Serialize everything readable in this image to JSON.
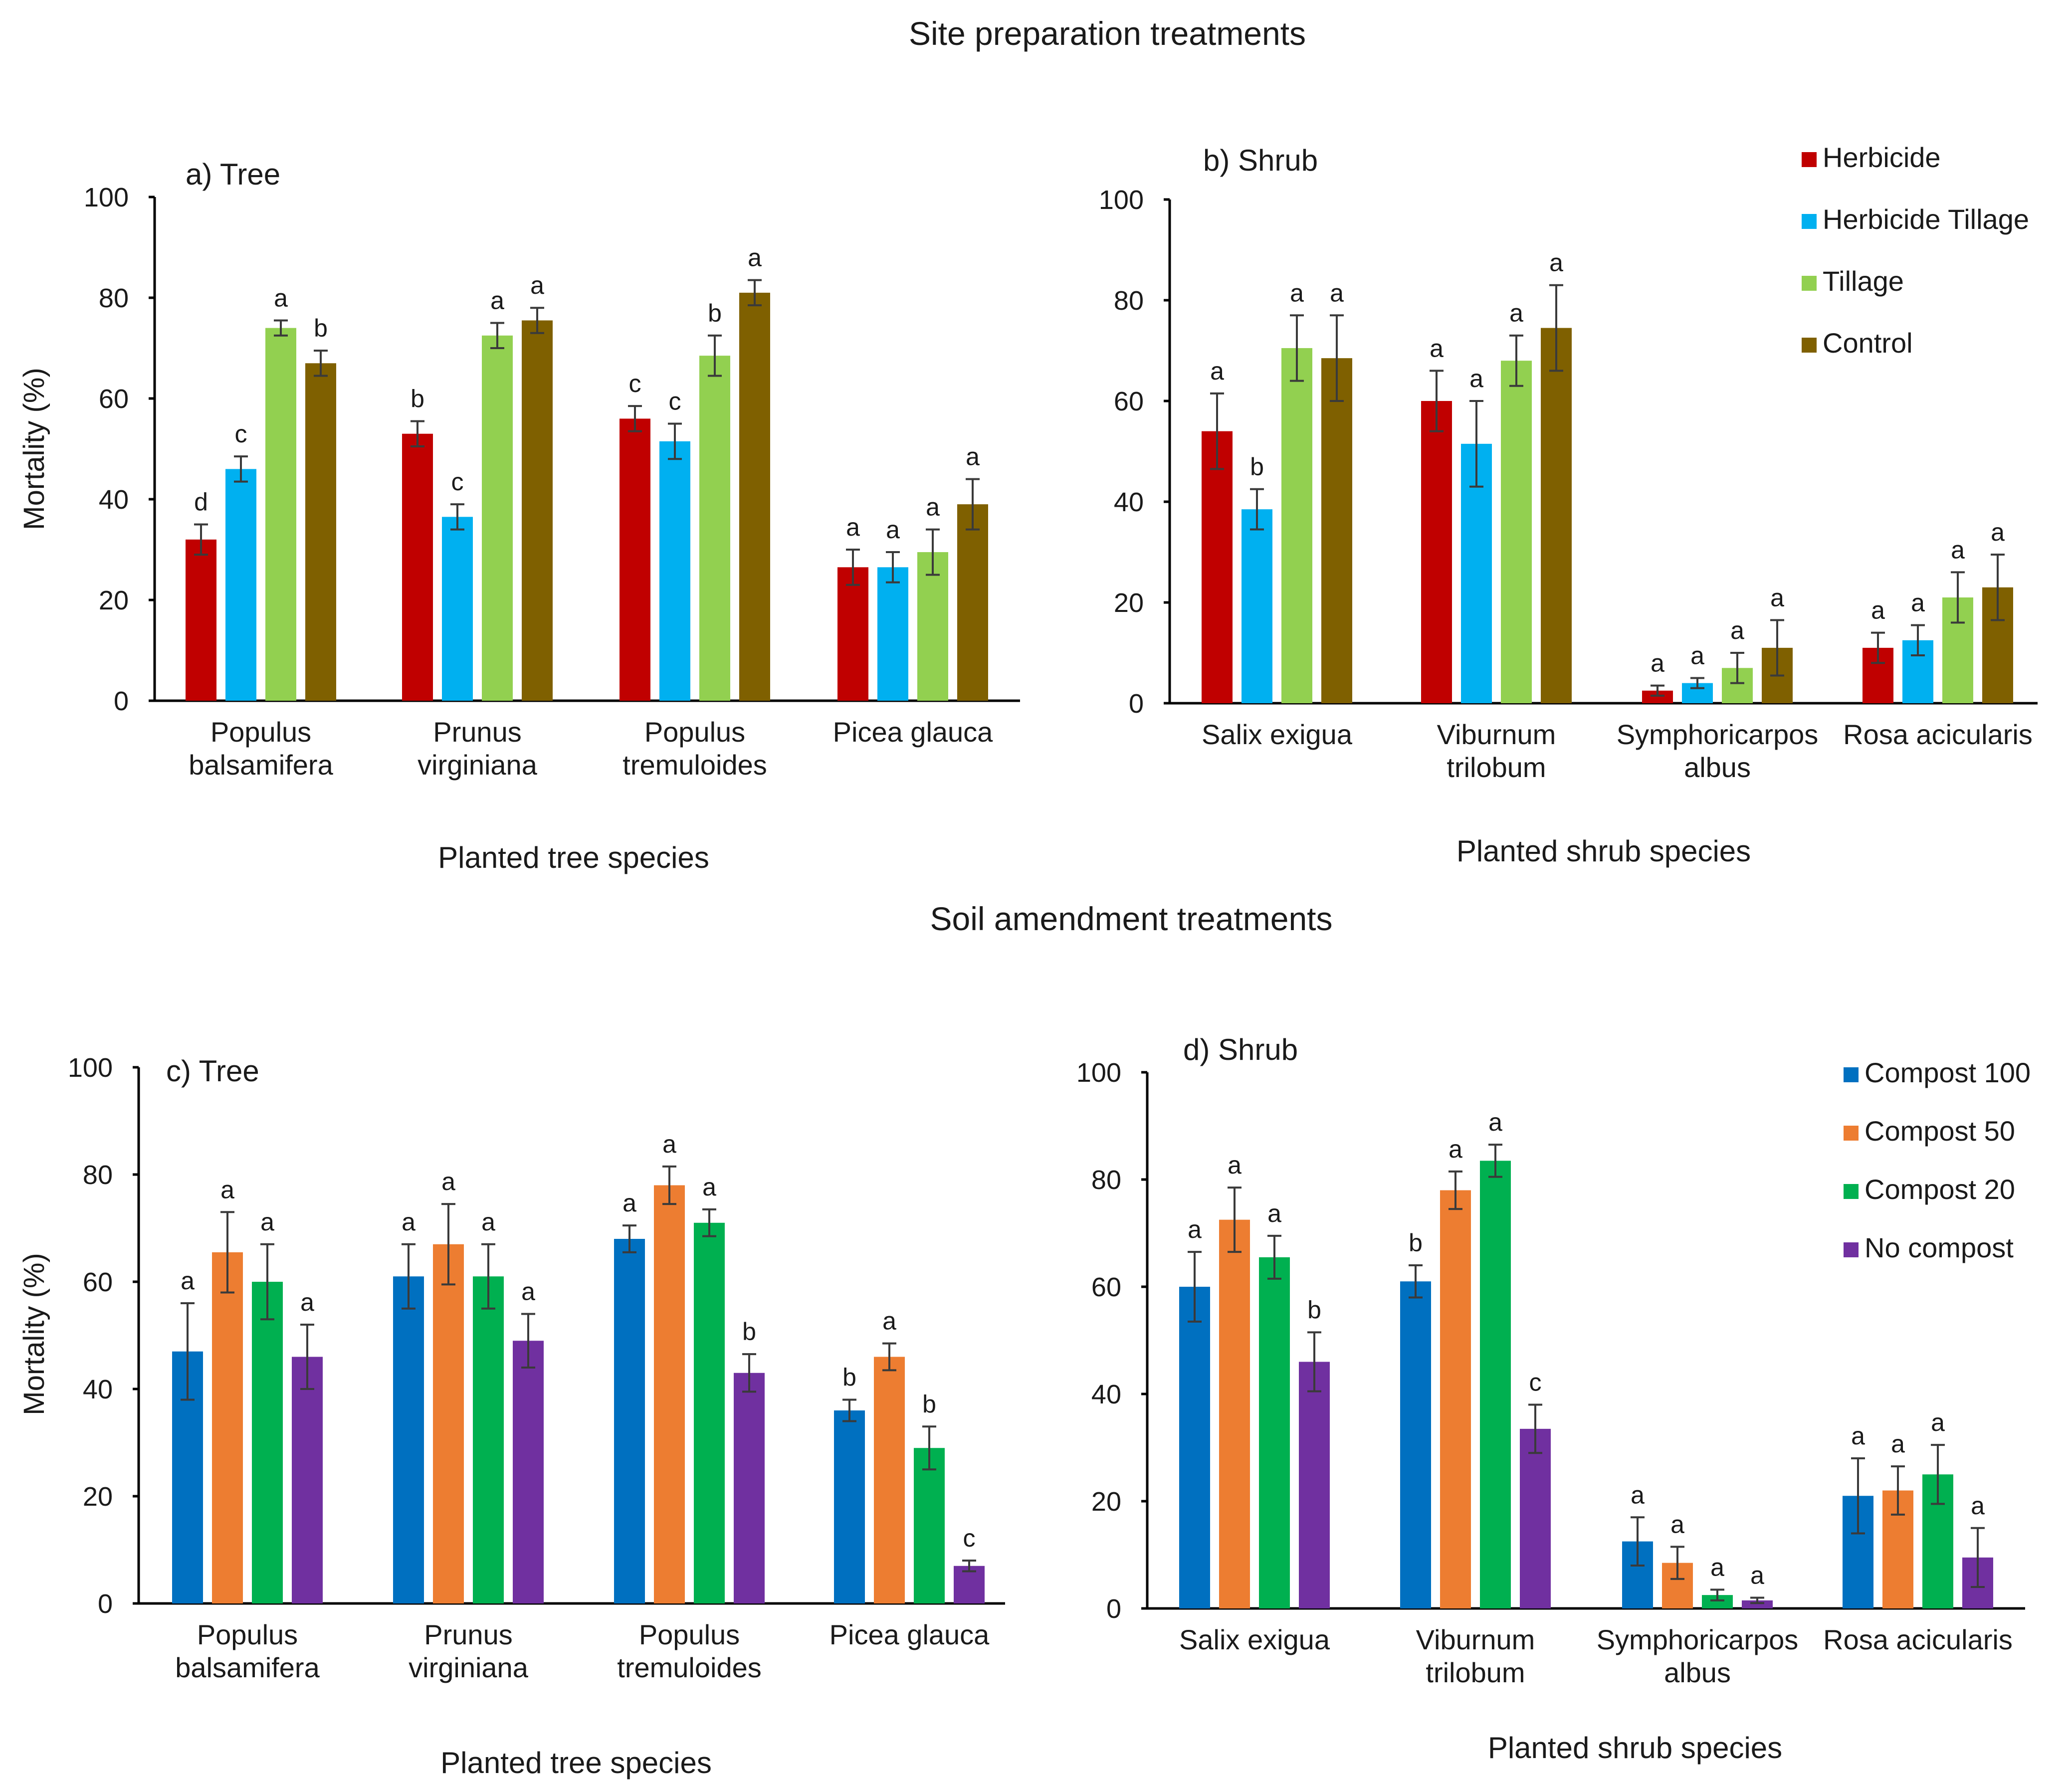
{
  "site_title": "Site preparation treatments",
  "soil_title": "Soil amendment treatments",
  "legend_site": [
    {
      "label": "Herbicide",
      "color": "#c00000"
    },
    {
      "label": "Herbicide Tillage",
      "color": "#00b0f0"
    },
    {
      "label": "Tillage",
      "color": "#92d050"
    },
    {
      "label": "Control",
      "color": "#7f6000"
    }
  ],
  "legend_soil": [
    {
      "label": "Compost 100",
      "color": "#0070c0"
    },
    {
      "label": "Compost 50",
      "color": "#ed7d31"
    },
    {
      "label": "Compost 20",
      "color": "#00b050"
    },
    {
      "label": "No compost",
      "color": "#7030a0"
    }
  ],
  "chart_data": [
    {
      "type": "bar",
      "panel": "a) Tree",
      "xlabel": "Planted tree species",
      "ylabel": "Mortality (%)",
      "ylim": [
        0,
        100
      ],
      "yticks": [
        0,
        20,
        40,
        60,
        80,
        100
      ],
      "categories": [
        [
          "Populus",
          "balsamifera"
        ],
        [
          "Prunus",
          "virginiana"
        ],
        [
          "Populus",
          "tremuloides"
        ],
        [
          "Picea glauca"
        ]
      ],
      "series": [
        {
          "name": "Herbicide",
          "values": [
            32,
            53,
            56,
            26.5
          ],
          "errors": [
            3,
            2.5,
            2.5,
            3.5
          ],
          "letters": [
            "d",
            "b",
            "c",
            "a"
          ]
        },
        {
          "name": "Herbicide Tillage",
          "values": [
            46,
            36.5,
            51.5,
            26.5
          ],
          "errors": [
            2.5,
            2.5,
            3.5,
            3
          ],
          "letters": [
            "c",
            "c",
            "c",
            "a"
          ]
        },
        {
          "name": "Tillage",
          "values": [
            74,
            72.5,
            68.5,
            29.5
          ],
          "errors": [
            1.5,
            2.5,
            4,
            4.5
          ],
          "letters": [
            "a",
            "a",
            "b",
            "a"
          ]
        },
        {
          "name": "Control",
          "values": [
            67,
            75.5,
            81,
            39
          ],
          "errors": [
            2.5,
            2.5,
            2.5,
            5
          ],
          "letters": [
            "b",
            "a",
            "a",
            "a"
          ]
        }
      ]
    },
    {
      "type": "bar",
      "panel": "b) Shrub",
      "xlabel": "Planted shrub species",
      "ylabel": "",
      "ylim": [
        0,
        100
      ],
      "yticks": [
        0,
        20,
        40,
        60,
        80,
        100
      ],
      "categories": [
        [
          "Salix  exigua"
        ],
        [
          "Viburnum",
          "trilobum"
        ],
        [
          "Symphoricarpos",
          "albus"
        ],
        [
          "Rosa acicularis"
        ]
      ],
      "series": [
        {
          "name": "Herbicide",
          "values": [
            54,
            60,
            2.5,
            11
          ],
          "errors": [
            7.5,
            6,
            1,
            3
          ],
          "letters": [
            "a",
            "a",
            "a",
            "a"
          ]
        },
        {
          "name": "Herbicide Tillage",
          "values": [
            38.5,
            51.5,
            4,
            12.5
          ],
          "errors": [
            4,
            8.5,
            1,
            3
          ],
          "letters": [
            "b",
            "a",
            "a",
            "a"
          ]
        },
        {
          "name": "Tillage",
          "values": [
            70.5,
            68,
            7,
            21
          ],
          "errors": [
            6.5,
            5,
            3,
            5
          ],
          "letters": [
            "a",
            "a",
            "a",
            "a"
          ]
        },
        {
          "name": "Control",
          "values": [
            68.5,
            74.5,
            11,
            23
          ],
          "errors": [
            8.5,
            8.5,
            5.5,
            6.5
          ],
          "letters": [
            "a",
            "a",
            "a",
            "a"
          ]
        }
      ]
    },
    {
      "type": "bar",
      "panel": "c) Tree",
      "xlabel": "Planted tree species",
      "ylabel": "Mortality (%)",
      "ylim": [
        0,
        100
      ],
      "yticks": [
        0,
        20,
        40,
        60,
        80,
        100
      ],
      "categories": [
        [
          "Populus",
          "balsamifera"
        ],
        [
          "Prunus",
          "virginiana"
        ],
        [
          "Populus",
          "tremuloides"
        ],
        [
          "Picea glauca"
        ]
      ],
      "series": [
        {
          "name": "Compost 100",
          "values": [
            47,
            61,
            68,
            36
          ],
          "errors": [
            9,
            6,
            2.5,
            2
          ],
          "letters": [
            "a",
            "a",
            "a",
            "b"
          ]
        },
        {
          "name": "Compost 50",
          "values": [
            65.5,
            67,
            78,
            46
          ],
          "errors": [
            7.5,
            7.5,
            3.5,
            2.5
          ],
          "letters": [
            "a",
            "a",
            "a",
            "a"
          ]
        },
        {
          "name": "Compost 20",
          "values": [
            60,
            61,
            71,
            29
          ],
          "errors": [
            7,
            6,
            2.5,
            4
          ],
          "letters": [
            "a",
            "a",
            "a",
            "b"
          ]
        },
        {
          "name": "No compost",
          "values": [
            46,
            49,
            43,
            7
          ],
          "errors": [
            6,
            5,
            3.5,
            1
          ],
          "letters": [
            "a",
            "a",
            "b",
            "c"
          ]
        }
      ]
    },
    {
      "type": "bar",
      "panel": "d) Shrub",
      "xlabel": "Planted shrub species",
      "ylabel": "",
      "ylim": [
        0,
        100
      ],
      "yticks": [
        0,
        20,
        40,
        60,
        80,
        100
      ],
      "categories": [
        [
          "Salix exigua"
        ],
        [
          "Viburnum",
          "trilobum"
        ],
        [
          "Symphoricarpos",
          "albus"
        ],
        [
          "Rosa acicularis"
        ]
      ],
      "series": [
        {
          "name": "Compost 100",
          "values": [
            60,
            61,
            12.5,
            21
          ],
          "errors": [
            6.5,
            3,
            4.5,
            7
          ],
          "letters": [
            "a",
            "b",
            "a",
            "a"
          ]
        },
        {
          "name": "Compost 50",
          "values": [
            72.5,
            78,
            8.5,
            22
          ],
          "errors": [
            6,
            3.5,
            3,
            4.5
          ],
          "letters": [
            "a",
            "a",
            "a",
            "a"
          ]
        },
        {
          "name": "Compost 20",
          "values": [
            65.5,
            83.5,
            2.5,
            25
          ],
          "errors": [
            4,
            3,
            1,
            5.5
          ],
          "letters": [
            "a",
            "a",
            "a",
            "a"
          ]
        },
        {
          "name": "No compost",
          "values": [
            46,
            33.5,
            1.5,
            9.5
          ],
          "errors": [
            5.5,
            4.5,
            0.5,
            5.5
          ],
          "letters": [
            "b",
            "c",
            "a",
            "a"
          ]
        }
      ]
    }
  ]
}
